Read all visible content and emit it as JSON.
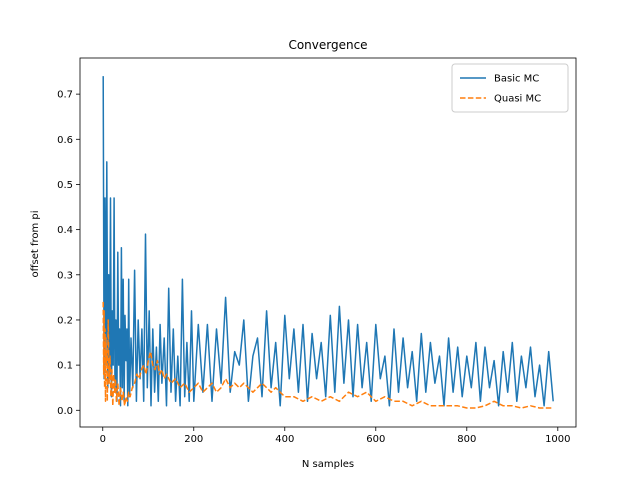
{
  "chart_data": {
    "type": "line",
    "title": "Convergence",
    "xlabel": "N samples",
    "ylabel": "offset from pi",
    "xlim": [
      -50,
      1040
    ],
    "ylim": [
      -0.037,
      0.78
    ],
    "xticks": [
      0,
      200,
      400,
      600,
      800,
      1000
    ],
    "xtick_labels": [
      "0",
      "200",
      "400",
      "600",
      "800",
      "1000"
    ],
    "yticks": [
      0.0,
      0.1,
      0.2,
      0.3,
      0.4,
      0.5,
      0.6,
      0.7
    ],
    "ytick_labels": [
      "0.0",
      "0.1",
      "0.2",
      "0.3",
      "0.4",
      "0.5",
      "0.6",
      "0.7"
    ],
    "grid": false,
    "legend_position": "top-right",
    "series": [
      {
        "name": "Basic MC",
        "color": "#1f77b4",
        "dash": "solid",
        "x": [
          1,
          3,
          5,
          7,
          9,
          11,
          13,
          15,
          17,
          19,
          21,
          23,
          25,
          27,
          29,
          31,
          33,
          35,
          37,
          39,
          41,
          43,
          45,
          47,
          49,
          51,
          53,
          55,
          57,
          59,
          62,
          66,
          70,
          74,
          78,
          82,
          86,
          90,
          94,
          98,
          102,
          106,
          110,
          114,
          118,
          122,
          126,
          130,
          135,
          140,
          145,
          150,
          155,
          160,
          165,
          170,
          175,
          180,
          185,
          190,
          195,
          200,
          210,
          220,
          230,
          240,
          250,
          260,
          270,
          280,
          290,
          300,
          310,
          320,
          330,
          340,
          350,
          360,
          370,
          380,
          390,
          400,
          410,
          420,
          430,
          440,
          450,
          460,
          470,
          480,
          490,
          500,
          510,
          520,
          530,
          540,
          550,
          560,
          570,
          580,
          590,
          600,
          610,
          620,
          630,
          640,
          650,
          660,
          670,
          680,
          690,
          700,
          710,
          720,
          730,
          740,
          750,
          760,
          770,
          780,
          790,
          800,
          810,
          820,
          830,
          840,
          850,
          860,
          870,
          880,
          890,
          900,
          910,
          920,
          930,
          940,
          950,
          960,
          970,
          980,
          990
        ],
        "y": [
          0.74,
          0.07,
          0.47,
          0.1,
          0.55,
          0.05,
          0.3,
          0.08,
          0.47,
          0.03,
          0.22,
          0.1,
          0.47,
          0.04,
          0.2,
          0.02,
          0.35,
          0.1,
          0.18,
          0.01,
          0.36,
          0.05,
          0.29,
          0.02,
          0.21,
          0.11,
          0.18,
          0.01,
          0.29,
          0.03,
          0.16,
          0.05,
          0.31,
          0.02,
          0.2,
          0.07,
          0.18,
          0.02,
          0.39,
          0.05,
          0.22,
          0.01,
          0.18,
          0.04,
          0.14,
          0.02,
          0.19,
          0.06,
          0.16,
          0.01,
          0.27,
          0.04,
          0.18,
          0.02,
          0.12,
          0.01,
          0.29,
          0.03,
          0.15,
          0.02,
          0.22,
          0.02,
          0.19,
          0.04,
          0.19,
          0.02,
          0.18,
          0.06,
          0.25,
          0.04,
          0.13,
          0.1,
          0.2,
          0.02,
          0.12,
          0.16,
          0.03,
          0.22,
          0.05,
          0.15,
          0.01,
          0.21,
          0.07,
          0.18,
          0.04,
          0.19,
          0.02,
          0.17,
          0.07,
          0.15,
          0.03,
          0.21,
          0.04,
          0.23,
          0.06,
          0.2,
          0.03,
          0.19,
          0.05,
          0.15,
          0.02,
          0.19,
          0.07,
          0.12,
          0.01,
          0.18,
          0.04,
          0.16,
          0.05,
          0.13,
          0.02,
          0.17,
          0.04,
          0.15,
          0.06,
          0.12,
          0.01,
          0.16,
          0.04,
          0.14,
          0.03,
          0.12,
          0.05,
          0.15,
          0.02,
          0.14,
          0.05,
          0.11,
          0.01,
          0.13,
          0.04,
          0.15,
          0.02,
          0.12,
          0.05,
          0.14,
          0.03,
          0.1,
          0.01,
          0.13,
          0.02
        ]
      },
      {
        "name": "Quasi MC",
        "color": "#ff7f0e",
        "dash": "dashed",
        "x": [
          1,
          2,
          3,
          4,
          5,
          6,
          7,
          8,
          9,
          10,
          12,
          14,
          16,
          18,
          20,
          22,
          24,
          26,
          28,
          30,
          33,
          36,
          39,
          42,
          45,
          48,
          51,
          54,
          57,
          60,
          65,
          70,
          75,
          80,
          85,
          90,
          95,
          100,
          105,
          110,
          115,
          120,
          125,
          130,
          135,
          140,
          150,
          160,
          170,
          180,
          190,
          200,
          210,
          220,
          230,
          240,
          250,
          260,
          270,
          280,
          290,
          300,
          310,
          320,
          330,
          340,
          350,
          360,
          370,
          380,
          390,
          400,
          420,
          440,
          460,
          480,
          500,
          520,
          540,
          560,
          580,
          600,
          620,
          640,
          660,
          680,
          700,
          720,
          740,
          760,
          780,
          800,
          820,
          840,
          860,
          880,
          900,
          920,
          940,
          960,
          980,
          990
        ],
        "y": [
          0.24,
          0.08,
          0.22,
          0.05,
          0.18,
          0.02,
          0.16,
          0.1,
          0.13,
          0.02,
          0.2,
          0.06,
          0.12,
          0.03,
          0.09,
          0.01,
          0.08,
          0.04,
          0.07,
          0.02,
          0.06,
          0.01,
          0.05,
          0.02,
          0.04,
          0.01,
          0.03,
          0.02,
          0.04,
          0.03,
          0.05,
          0.06,
          0.08,
          0.07,
          0.09,
          0.1,
          0.08,
          0.11,
          0.13,
          0.1,
          0.09,
          0.11,
          0.08,
          0.09,
          0.07,
          0.08,
          0.06,
          0.07,
          0.05,
          0.06,
          0.04,
          0.05,
          0.06,
          0.04,
          0.05,
          0.06,
          0.04,
          0.05,
          0.07,
          0.05,
          0.06,
          0.05,
          0.06,
          0.05,
          0.04,
          0.05,
          0.06,
          0.05,
          0.04,
          0.05,
          0.04,
          0.03,
          0.03,
          0.02,
          0.03,
          0.02,
          0.03,
          0.02,
          0.04,
          0.03,
          0.04,
          0.02,
          0.03,
          0.02,
          0.02,
          0.01,
          0.02,
          0.01,
          0.01,
          0.01,
          0.01,
          0.005,
          0.005,
          0.01,
          0.02,
          0.01,
          0.01,
          0.005,
          0.01,
          0.005,
          0.005,
          0.005
        ]
      }
    ]
  }
}
